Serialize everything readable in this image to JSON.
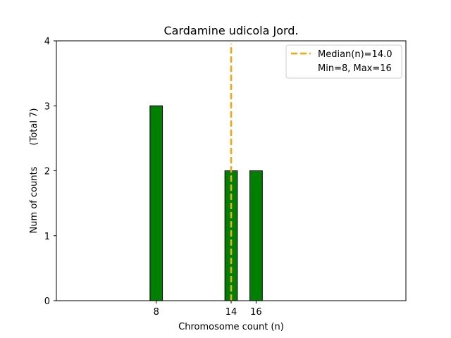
{
  "chart_data": {
    "type": "bar",
    "title": "Cardamine udicola Jord.",
    "xlabel": "Chromosome count (n)",
    "ylabel": "Num of counts",
    "ylabel_note": "(Total 7)",
    "x": [
      8,
      14,
      16
    ],
    "values": [
      3,
      2,
      2
    ],
    "xlim": [
      0,
      28
    ],
    "ylim": [
      0,
      4
    ],
    "xticks": [
      8,
      14,
      16
    ],
    "yticks": [
      0,
      1,
      2,
      3,
      4
    ],
    "bar_width": 1,
    "bar_color": "#008000",
    "bar_edge_color": "#000000",
    "median": 14.0,
    "median_color": "#FFA500",
    "legend": {
      "position": "top-right",
      "entries": [
        "Median(n)=14.0",
        "Min=8, Max=16"
      ]
    },
    "baseline_extent": [
      0,
      16
    ]
  }
}
